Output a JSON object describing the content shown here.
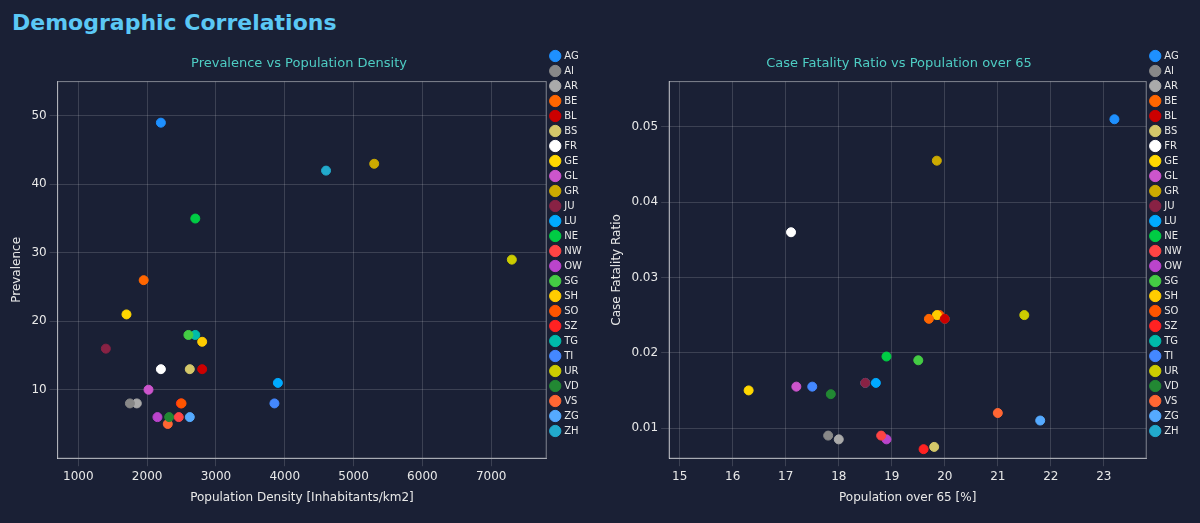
{
  "title": "Demographic Correlations",
  "chart_data": [
    {
      "type": "scatter",
      "title": "Prevalence vs Population Density",
      "x_label": "Population Density [Inhabitants/km2]",
      "y_label": "Prevalence",
      "xlim": [
        700,
        7800
      ],
      "ylim": [
        0,
        55
      ],
      "xticks": [
        1000,
        2000,
        3000,
        4000,
        5000,
        6000,
        7000
      ],
      "yticks": [
        10,
        20,
        30,
        40,
        50
      ],
      "grid": true,
      "legend": "right",
      "marker": "circle",
      "series": [
        {
          "name": "AG",
          "color": "#1e90ff",
          "x": [
            2200
          ],
          "values": [
            49
          ]
        },
        {
          "name": "AI",
          "color": "#888888",
          "x": [
            1750
          ],
          "values": [
            8
          ]
        },
        {
          "name": "AR",
          "color": "#aaaaaa",
          "x": [
            1850
          ],
          "values": [
            8
          ]
        },
        {
          "name": "BE",
          "color": "#ff6600",
          "x": [
            1950
          ],
          "values": [
            26
          ]
        },
        {
          "name": "BL",
          "color": "#cc0000",
          "x": [
            2800
          ],
          "values": [
            13
          ]
        },
        {
          "name": "BS",
          "color": "#d4c86a",
          "x": [
            2620
          ],
          "values": [
            13
          ]
        },
        {
          "name": "FR",
          "color": "#ffffff",
          "x": [
            2200
          ],
          "values": [
            13
          ]
        },
        {
          "name": "GE",
          "color": "#ffd700",
          "x": [
            1700
          ],
          "values": [
            21
          ]
        },
        {
          "name": "GL",
          "color": "#cc55cc",
          "x": [
            2020
          ],
          "values": [
            10
          ]
        },
        {
          "name": "GR",
          "color": "#ccaa00",
          "x": [
            5300
          ],
          "values": [
            43
          ]
        },
        {
          "name": "JU",
          "color": "#882244",
          "x": [
            1400
          ],
          "values": [
            16
          ]
        },
        {
          "name": "LU",
          "color": "#00aaff",
          "x": [
            3900
          ],
          "values": [
            11
          ]
        },
        {
          "name": "NE",
          "color": "#00cc44",
          "x": [
            2700
          ],
          "values": [
            35
          ]
        },
        {
          "name": "NW",
          "color": "#ff4444",
          "x": [
            2460
          ],
          "values": [
            6
          ]
        },
        {
          "name": "OW",
          "color": "#bb44cc",
          "x": [
            2150
          ],
          "values": [
            6
          ]
        },
        {
          "name": "SG",
          "color": "#44cc44",
          "x": [
            2600
          ],
          "values": [
            18
          ]
        },
        {
          "name": "SH",
          "color": "#ffcc00",
          "x": [
            2800
          ],
          "values": [
            17
          ]
        },
        {
          "name": "SO",
          "color": "#ff5500",
          "x": [
            2500
          ],
          "values": [
            8
          ]
        },
        {
          "name": "SZ",
          "color": "#ff2222",
          "x": [
            2490
          ],
          "values": [
            8
          ]
        },
        {
          "name": "TG",
          "color": "#00bbaa",
          "x": [
            2700
          ],
          "values": [
            18
          ]
        },
        {
          "name": "TI",
          "color": "#4488ff",
          "x": [
            3850
          ],
          "values": [
            8
          ]
        },
        {
          "name": "UR",
          "color": "#cccc00",
          "x": [
            7300
          ],
          "values": [
            29
          ]
        },
        {
          "name": "VD",
          "color": "#228833",
          "x": [
            2320
          ],
          "values": [
            6
          ]
        },
        {
          "name": "VS",
          "color": "#ff6633",
          "x": [
            2300
          ],
          "values": [
            5
          ]
        },
        {
          "name": "ZG",
          "color": "#55aaff",
          "x": [
            2620
          ],
          "values": [
            6
          ]
        },
        {
          "name": "ZH",
          "color": "#22aacc",
          "x": [
            4600
          ],
          "values": [
            42
          ]
        }
      ]
    },
    {
      "type": "scatter",
      "title": "Case Fatality Ratio vs Population over 65",
      "x_label": "Population over 65 [%]",
      "y_label": "Case Fatality Ratio",
      "xlim": [
        14.8,
        23.8
      ],
      "ylim": [
        0.006,
        0.056
      ],
      "xticks": [
        15,
        16,
        17,
        18,
        19,
        20,
        21,
        22,
        23
      ],
      "yticks": [
        0.01,
        0.02,
        0.03,
        0.04,
        0.05
      ],
      "grid": true,
      "legend": "right",
      "marker": "circle",
      "series": [
        {
          "name": "AG",
          "color": "#1e90ff",
          "x": [
            23.2
          ],
          "values": [
            0.051
          ]
        },
        {
          "name": "AI",
          "color": "#888888",
          "x": [
            17.8
          ],
          "values": [
            0.009
          ]
        },
        {
          "name": "AR",
          "color": "#aaaaaa",
          "x": [
            18.0
          ],
          "values": [
            0.0085
          ]
        },
        {
          "name": "BE",
          "color": "#ff6600",
          "x": [
            19.7
          ],
          "values": [
            0.0245
          ]
        },
        {
          "name": "BL",
          "color": "#cc0000",
          "x": [
            20.0
          ],
          "values": [
            0.0245
          ]
        },
        {
          "name": "BS",
          "color": "#d4c86a",
          "x": [
            19.8
          ],
          "values": [
            0.0075
          ]
        },
        {
          "name": "FR",
          "color": "#ffffff",
          "x": [
            17.1
          ],
          "values": [
            0.036
          ]
        },
        {
          "name": "GE",
          "color": "#ffd700",
          "x": [
            16.3
          ],
          "values": [
            0.015
          ]
        },
        {
          "name": "GL",
          "color": "#cc55cc",
          "x": [
            17.2
          ],
          "values": [
            0.0155
          ]
        },
        {
          "name": "GR",
          "color": "#ccaa00",
          "x": [
            19.85
          ],
          "values": [
            0.0455
          ]
        },
        {
          "name": "JU",
          "color": "#882244",
          "x": [
            18.5
          ],
          "values": [
            0.016
          ]
        },
        {
          "name": "LU",
          "color": "#00aaff",
          "x": [
            18.7
          ],
          "values": [
            0.016
          ]
        },
        {
          "name": "NE",
          "color": "#00cc44",
          "x": [
            18.9
          ],
          "values": [
            0.0195
          ]
        },
        {
          "name": "NW",
          "color": "#ff4444",
          "x": [
            18.8
          ],
          "values": [
            0.009
          ]
        },
        {
          "name": "OW",
          "color": "#bb44cc",
          "x": [
            18.9
          ],
          "values": [
            0.0085
          ]
        },
        {
          "name": "SG",
          "color": "#44cc44",
          "x": [
            19.5
          ],
          "values": [
            0.019
          ]
        },
        {
          "name": "SH",
          "color": "#ffcc00",
          "x": [
            19.85
          ],
          "values": [
            0.025
          ]
        },
        {
          "name": "SO",
          "color": "#ff5500",
          "x": [
            19.9
          ],
          "values": [
            0.025
          ]
        },
        {
          "name": "SZ",
          "color": "#ff2222",
          "x": [
            19.6
          ],
          "values": [
            0.0072
          ]
        },
        {
          "name": "TG",
          "color": "#00bbaa",
          "x": [
            20.0
          ],
          "values": [
            0.0245
          ]
        },
        {
          "name": "TI",
          "color": "#4488ff",
          "x": [
            17.5
          ],
          "values": [
            0.0155
          ]
        },
        {
          "name": "UR",
          "color": "#cccc00",
          "x": [
            21.5
          ],
          "values": [
            0.025
          ]
        },
        {
          "name": "VD",
          "color": "#228833",
          "x": [
            17.85
          ],
          "values": [
            0.0145
          ]
        },
        {
          "name": "VS",
          "color": "#ff6633",
          "x": [
            21.0
          ],
          "values": [
            0.012
          ]
        },
        {
          "name": "ZG",
          "color": "#55aaff",
          "x": [
            21.8
          ],
          "values": [
            0.011
          ]
        },
        {
          "name": "ZH",
          "color": "#22aacc",
          "x": [
            18.5
          ],
          "values": [
            0.016
          ]
        }
      ]
    }
  ]
}
